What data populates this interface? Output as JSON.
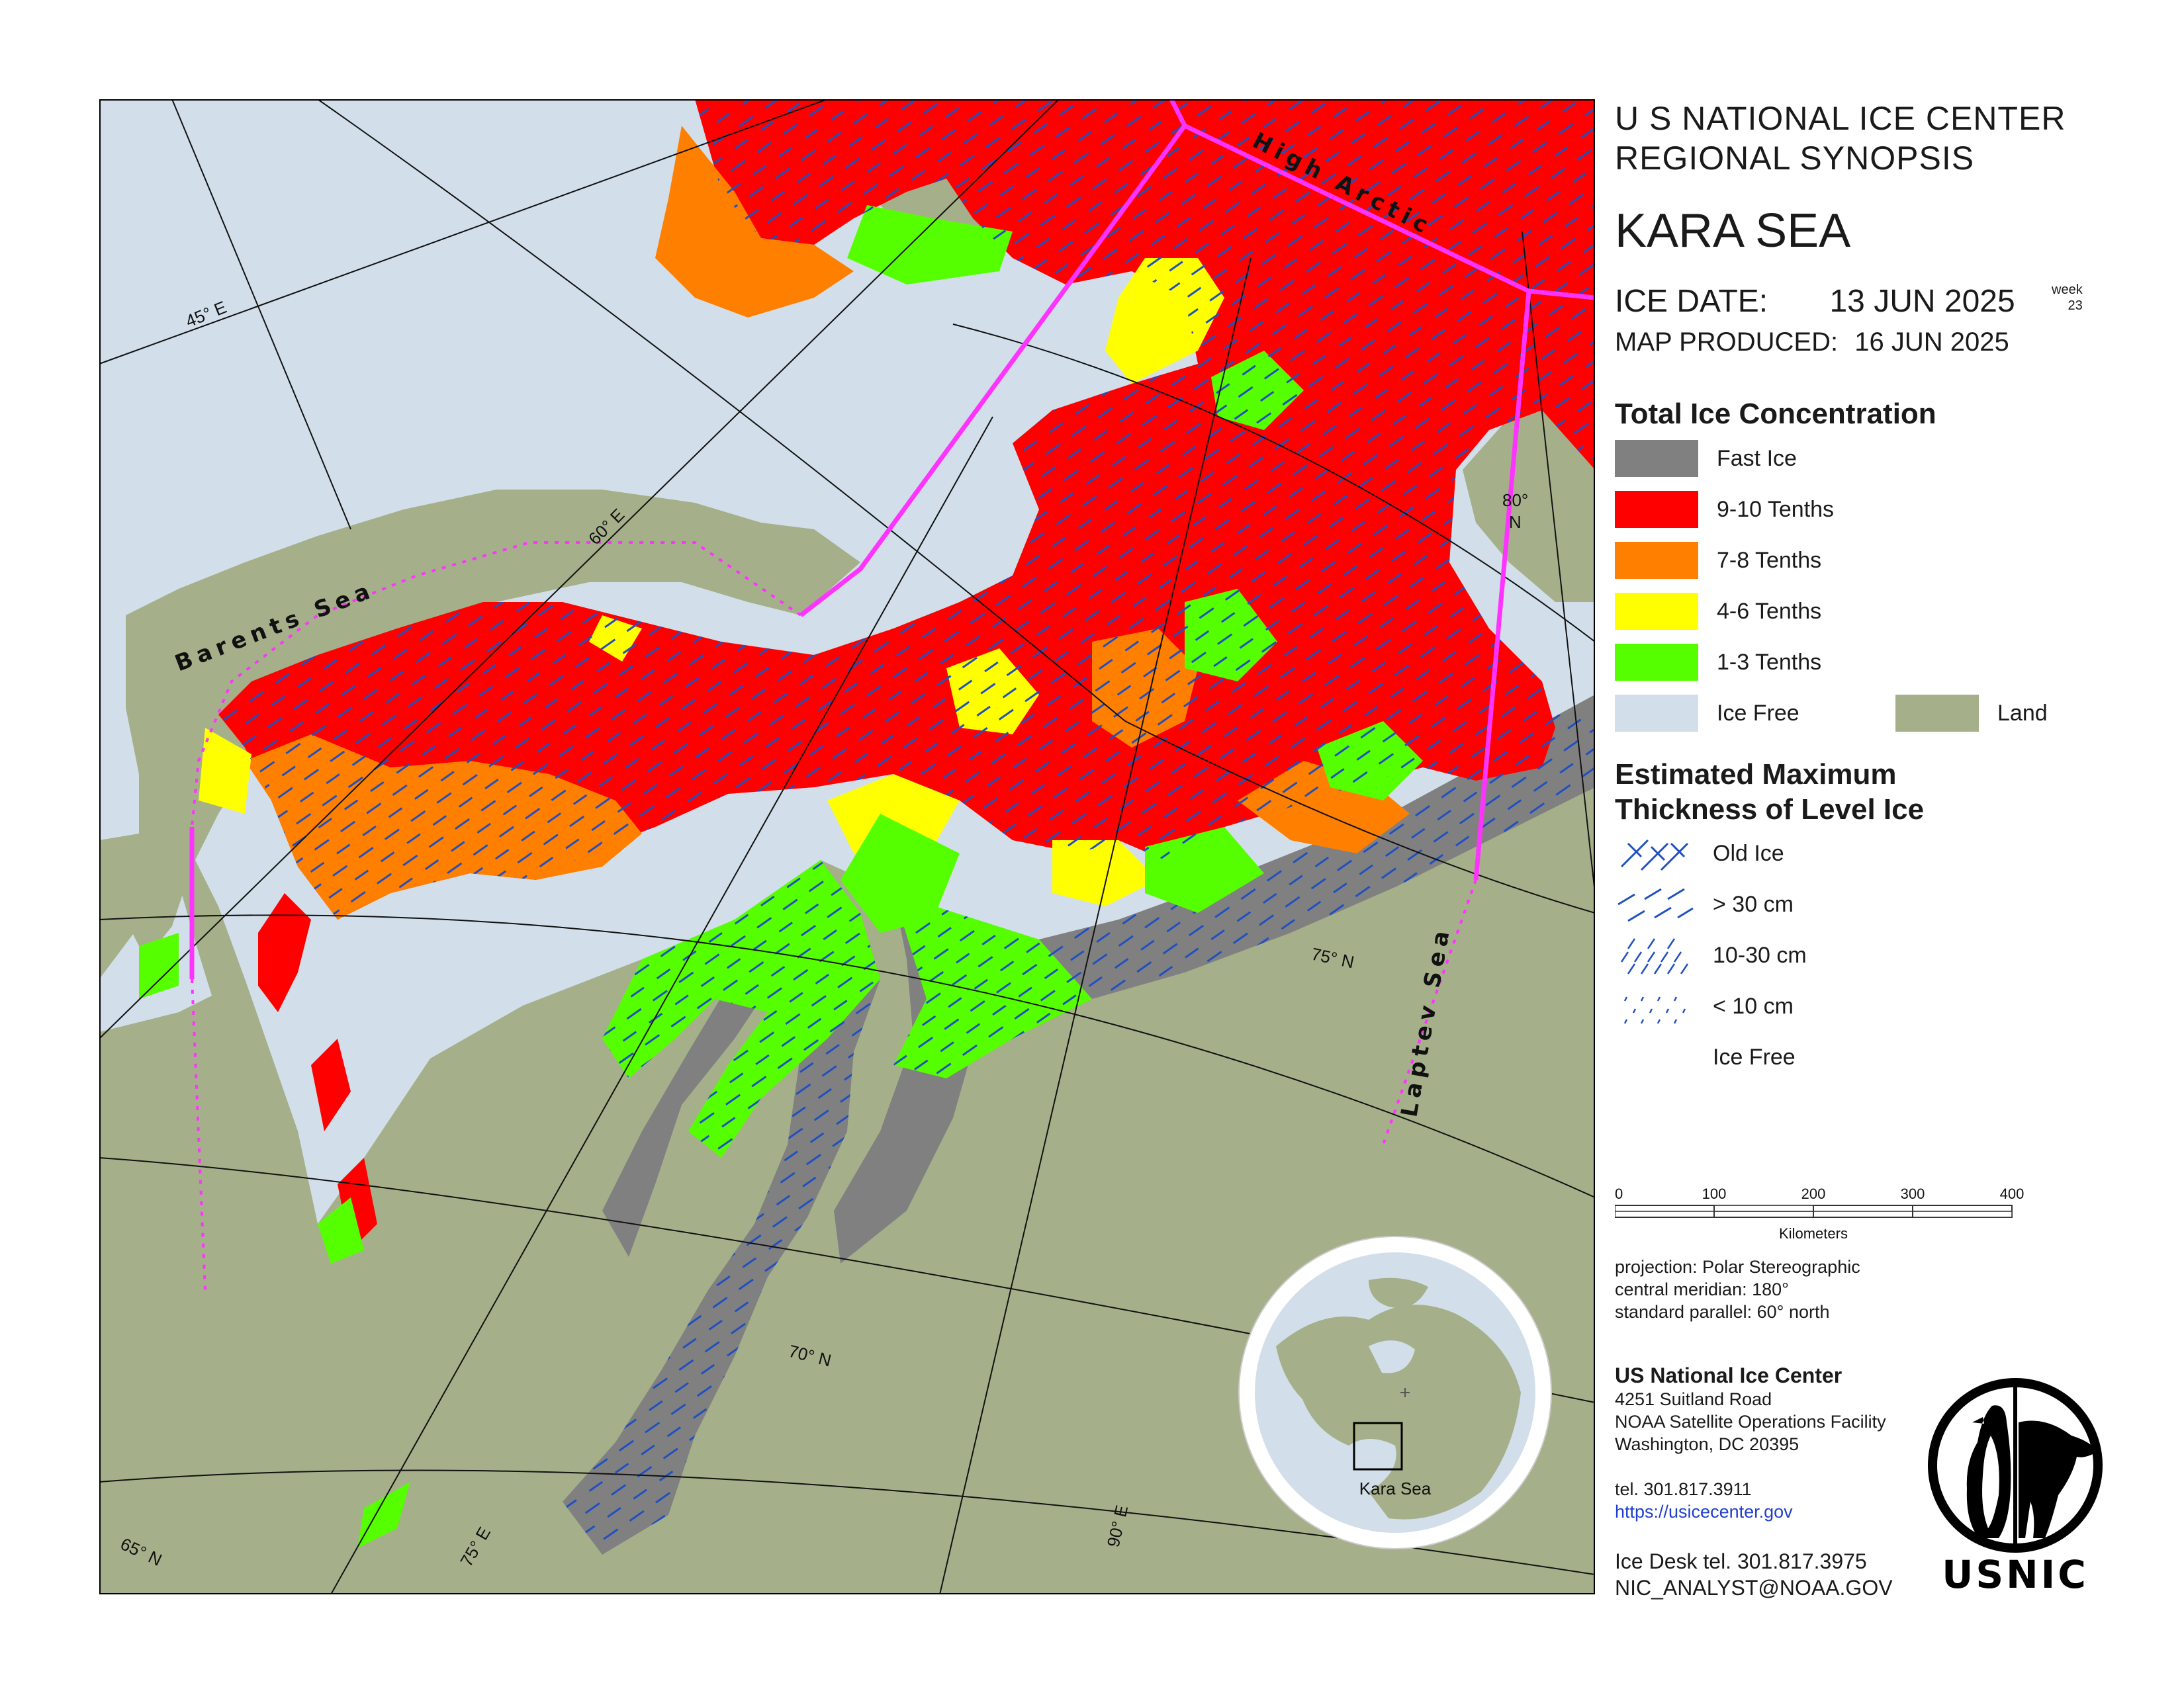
{
  "header": {
    "agency_line1": "U S NATIONAL ICE CENTER",
    "agency_line2": "REGIONAL SYNOPSIS",
    "region": "KARA SEA",
    "ice_date_label": "ICE DATE:",
    "ice_date": "13 JUN 2025",
    "week_label": "week",
    "week_number": "23",
    "map_produced_label": "MAP PRODUCED:",
    "map_produced": "16 JUN 2025"
  },
  "legend_concentration": {
    "title": "Total Ice Concentration",
    "items": [
      {
        "label": "Fast Ice",
        "color": "#808080"
      },
      {
        "label": "9-10 Tenths",
        "color": "#ff0000"
      },
      {
        "label": "7-8 Tenths",
        "color": "#ff7f00"
      },
      {
        "label": "4-6 Tenths",
        "color": "#ffff00"
      },
      {
        "label": "1-3 Tenths",
        "color": "#55ff00"
      },
      {
        "label": "Ice Free",
        "color": "#d2dfea"
      },
      {
        "label": "Land",
        "color": "#a5b08a"
      }
    ]
  },
  "legend_thickness": {
    "title_line1": "Estimated Maximum",
    "title_line2": "Thickness of Level Ice",
    "items": [
      {
        "label": "Old Ice",
        "pattern": "cross"
      },
      {
        "label": "> 30 cm",
        "pattern": "long-dash"
      },
      {
        "label": "10-30 cm",
        "pattern": "short-dash"
      },
      {
        "label": "< 10 cm",
        "pattern": "dots"
      },
      {
        "label": "Ice Free",
        "pattern": "none"
      }
    ]
  },
  "scale_bar": {
    "ticks": [
      "0",
      "100",
      "200",
      "300",
      "400"
    ],
    "unit": "Kilometers"
  },
  "projection": {
    "line1": "projection: Polar Stereographic",
    "line2": "central meridian: 180°",
    "line3": "standard parallel:  60° north"
  },
  "contact": {
    "org": "US National Ice Center",
    "address1": "4251 Suitland Road",
    "address2": "NOAA Satellite Operations Facility",
    "address3": "Washington, DC  20395",
    "tel": "tel. 301.817.3911",
    "url": "https://usicecenter.gov",
    "ice_desk": "Ice Desk tel. 301.817.3975",
    "email": "NIC_ANALYST@NOAA.GOV"
  },
  "logo_text": "USNIC",
  "inset": {
    "label": "Kara Sea"
  },
  "map_labels": {
    "barents": "Barents Sea",
    "high_arctic": "High Arctic",
    "laptev": "Laptev Sea",
    "lon_45": "45° E",
    "lon_60": "60° E",
    "lon_75": "75° E",
    "lon_90": "90° E",
    "lat_65": "65° N",
    "lat_70": "70° N",
    "lat_75": "75° N",
    "lat_80_deg": "80°",
    "lat_80_n": "N"
  },
  "colors": {
    "hatch": "#2050c0",
    "boundary": "#ff33ff",
    "grid": "#111111"
  }
}
